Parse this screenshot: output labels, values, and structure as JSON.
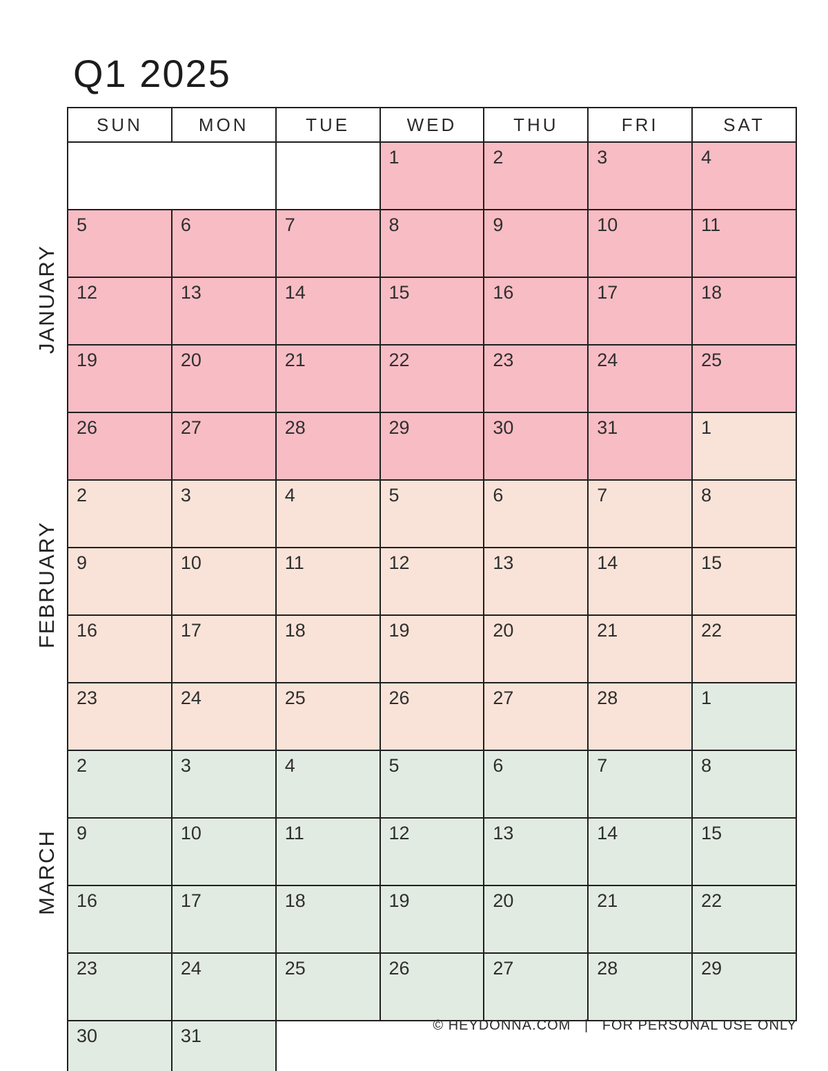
{
  "title": "Q1 2025",
  "calendar": {
    "weekdays": [
      "SUN",
      "MON",
      "TUE",
      "WED",
      "THU",
      "FRI",
      "SAT"
    ],
    "months": [
      {
        "key": "jan",
        "label": "JANUARY",
        "color": "#f8bcc4"
      },
      {
        "key": "feb",
        "label": "FEBRUARY",
        "color": "#f9e3d8"
      },
      {
        "key": "mar",
        "label": "MARCH",
        "color": "#e2ebe1"
      }
    ],
    "weeks": [
      {
        "cells": [
          {
            "d": "",
            "m": "blank",
            "span": 2
          },
          {
            "d": "",
            "m": "blank"
          },
          {
            "d": "1",
            "m": "jan"
          },
          {
            "d": "2",
            "m": "jan"
          },
          {
            "d": "3",
            "m": "jan"
          },
          {
            "d": "4",
            "m": "jan"
          }
        ]
      },
      {
        "cells": [
          {
            "d": "5",
            "m": "jan"
          },
          {
            "d": "6",
            "m": "jan"
          },
          {
            "d": "7",
            "m": "jan"
          },
          {
            "d": "8",
            "m": "jan"
          },
          {
            "d": "9",
            "m": "jan"
          },
          {
            "d": "10",
            "m": "jan"
          },
          {
            "d": "11",
            "m": "jan"
          }
        ]
      },
      {
        "cells": [
          {
            "d": "12",
            "m": "jan"
          },
          {
            "d": "13",
            "m": "jan"
          },
          {
            "d": "14",
            "m": "jan"
          },
          {
            "d": "15",
            "m": "jan"
          },
          {
            "d": "16",
            "m": "jan"
          },
          {
            "d": "17",
            "m": "jan"
          },
          {
            "d": "18",
            "m": "jan"
          }
        ]
      },
      {
        "cells": [
          {
            "d": "19",
            "m": "jan"
          },
          {
            "d": "20",
            "m": "jan"
          },
          {
            "d": "21",
            "m": "jan"
          },
          {
            "d": "22",
            "m": "jan"
          },
          {
            "d": "23",
            "m": "jan"
          },
          {
            "d": "24",
            "m": "jan"
          },
          {
            "d": "25",
            "m": "jan"
          }
        ]
      },
      {
        "cells": [
          {
            "d": "26",
            "m": "jan"
          },
          {
            "d": "27",
            "m": "jan"
          },
          {
            "d": "28",
            "m": "jan"
          },
          {
            "d": "29",
            "m": "jan"
          },
          {
            "d": "30",
            "m": "jan"
          },
          {
            "d": "31",
            "m": "jan"
          },
          {
            "d": "1",
            "m": "feb"
          }
        ]
      },
      {
        "cells": [
          {
            "d": "2",
            "m": "feb"
          },
          {
            "d": "3",
            "m": "feb"
          },
          {
            "d": "4",
            "m": "feb"
          },
          {
            "d": "5",
            "m": "feb"
          },
          {
            "d": "6",
            "m": "feb"
          },
          {
            "d": "7",
            "m": "feb"
          },
          {
            "d": "8",
            "m": "feb"
          }
        ]
      },
      {
        "cells": [
          {
            "d": "9",
            "m": "feb"
          },
          {
            "d": "10",
            "m": "feb"
          },
          {
            "d": "11",
            "m": "feb"
          },
          {
            "d": "12",
            "m": "feb"
          },
          {
            "d": "13",
            "m": "feb"
          },
          {
            "d": "14",
            "m": "feb"
          },
          {
            "d": "15",
            "m": "feb"
          }
        ]
      },
      {
        "cells": [
          {
            "d": "16",
            "m": "feb"
          },
          {
            "d": "17",
            "m": "feb"
          },
          {
            "d": "18",
            "m": "feb"
          },
          {
            "d": "19",
            "m": "feb"
          },
          {
            "d": "20",
            "m": "feb"
          },
          {
            "d": "21",
            "m": "feb"
          },
          {
            "d": "22",
            "m": "feb"
          }
        ]
      },
      {
        "cells": [
          {
            "d": "23",
            "m": "feb"
          },
          {
            "d": "24",
            "m": "feb"
          },
          {
            "d": "25",
            "m": "feb"
          },
          {
            "d": "26",
            "m": "feb"
          },
          {
            "d": "27",
            "m": "feb"
          },
          {
            "d": "28",
            "m": "feb"
          },
          {
            "d": "1",
            "m": "mar"
          }
        ]
      },
      {
        "cells": [
          {
            "d": "2",
            "m": "mar"
          },
          {
            "d": "3",
            "m": "mar"
          },
          {
            "d": "4",
            "m": "mar"
          },
          {
            "d": "5",
            "m": "mar"
          },
          {
            "d": "6",
            "m": "mar"
          },
          {
            "d": "7",
            "m": "mar"
          },
          {
            "d": "8",
            "m": "mar"
          }
        ]
      },
      {
        "cells": [
          {
            "d": "9",
            "m": "mar"
          },
          {
            "d": "10",
            "m": "mar"
          },
          {
            "d": "11",
            "m": "mar"
          },
          {
            "d": "12",
            "m": "mar"
          },
          {
            "d": "13",
            "m": "mar"
          },
          {
            "d": "14",
            "m": "mar"
          },
          {
            "d": "15",
            "m": "mar"
          }
        ]
      },
      {
        "cells": [
          {
            "d": "16",
            "m": "mar"
          },
          {
            "d": "17",
            "m": "mar"
          },
          {
            "d": "18",
            "m": "mar"
          },
          {
            "d": "19",
            "m": "mar"
          },
          {
            "d": "20",
            "m": "mar"
          },
          {
            "d": "21",
            "m": "mar"
          },
          {
            "d": "22",
            "m": "mar"
          }
        ]
      },
      {
        "cells": [
          {
            "d": "23",
            "m": "mar"
          },
          {
            "d": "24",
            "m": "mar"
          },
          {
            "d": "25",
            "m": "mar"
          },
          {
            "d": "26",
            "m": "mar"
          },
          {
            "d": "27",
            "m": "mar"
          },
          {
            "d": "28",
            "m": "mar"
          },
          {
            "d": "29",
            "m": "mar"
          }
        ]
      },
      {
        "cells": [
          {
            "d": "30",
            "m": "mar"
          },
          {
            "d": "31",
            "m": "mar"
          },
          {
            "d": "",
            "m": "absent",
            "span": 5
          }
        ]
      }
    ]
  },
  "footer": {
    "text": "© HEYDONNA.COM   |   FOR PERSONAL USE ONLY"
  }
}
